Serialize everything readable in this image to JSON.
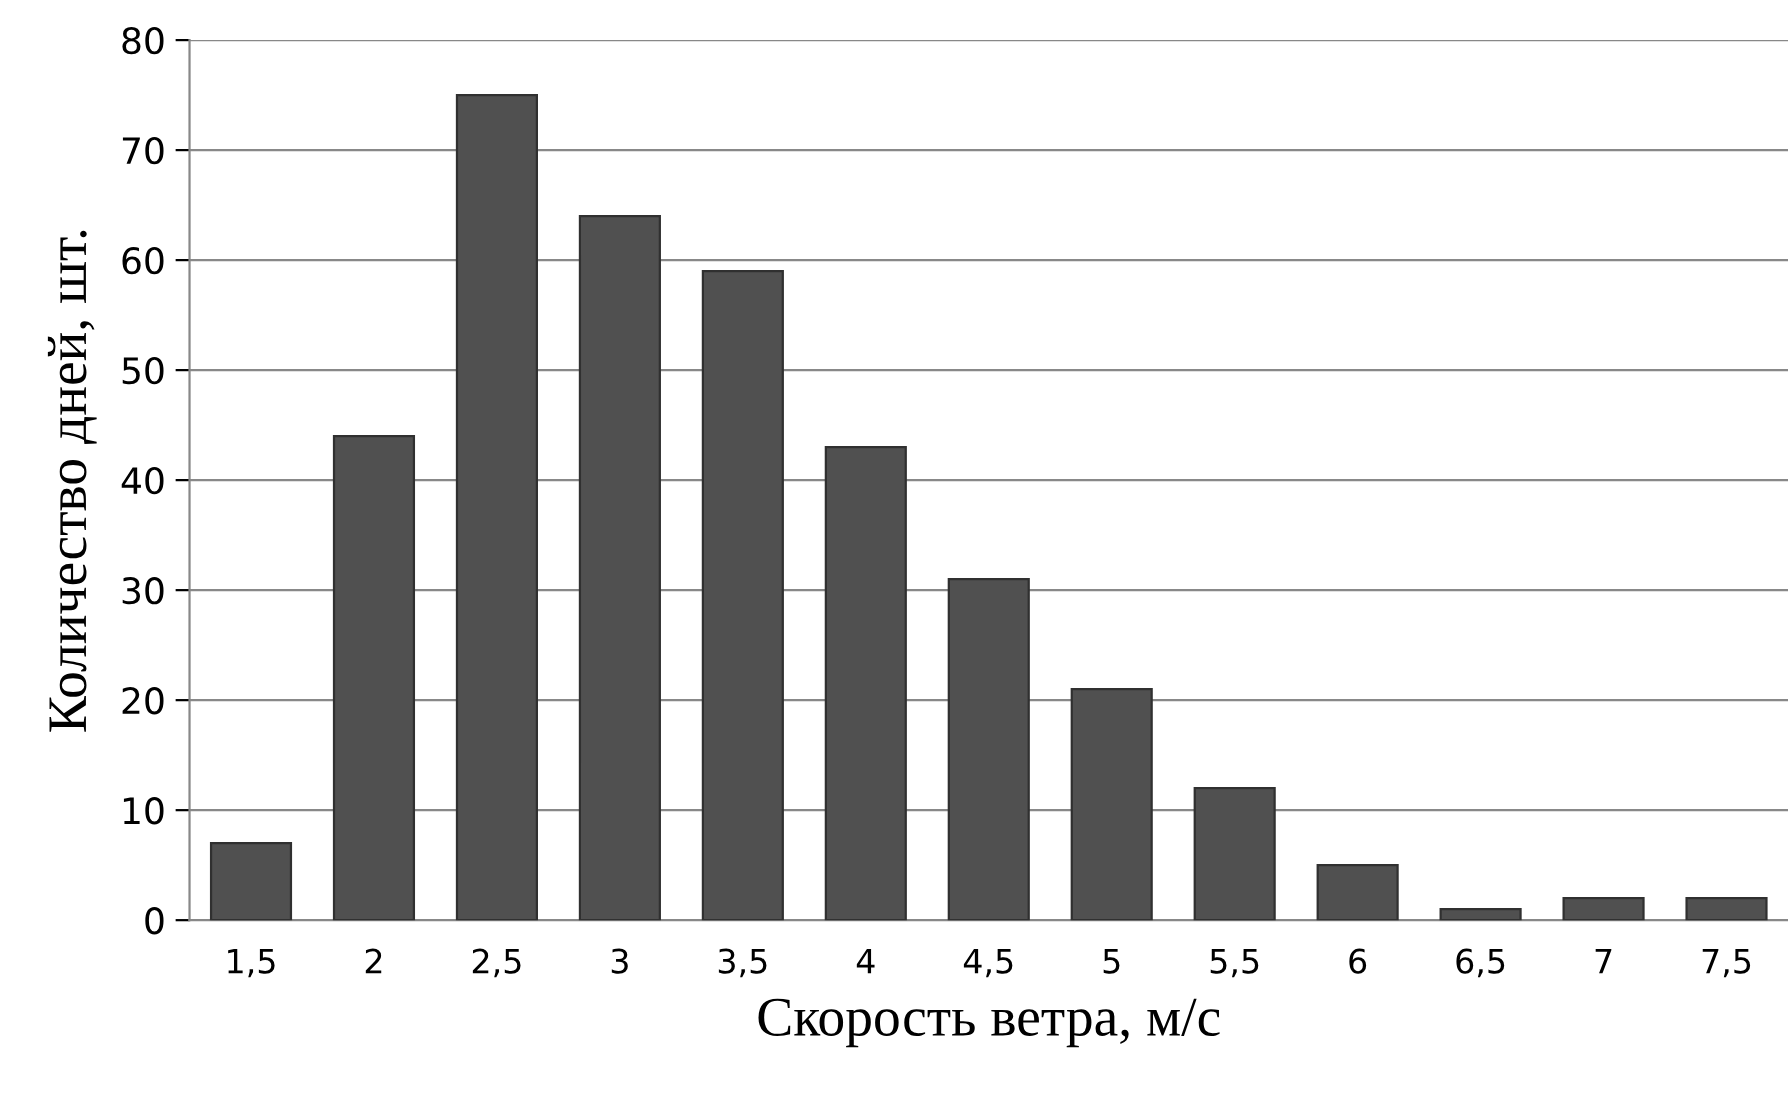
{
  "chart_data": {
    "type": "bar",
    "xlabel": "Скорость ветра, м/с",
    "ylabel": "Количество дней, шт.",
    "categories": [
      "1,5",
      "2",
      "2,5",
      "3",
      "3,5",
      "4",
      "4,5",
      "5",
      "5,5",
      "6",
      "6,5",
      "7",
      "7,5"
    ],
    "values": [
      7,
      44,
      75,
      64,
      59,
      43,
      31,
      21,
      12,
      5,
      1,
      2,
      2
    ],
    "color": "#505050",
    "ylim": [
      0,
      80
    ],
    "yticks": [
      0,
      10,
      20,
      30,
      40,
      50,
      60,
      70,
      80
    ],
    "grid": "y",
    "legend": false
  }
}
